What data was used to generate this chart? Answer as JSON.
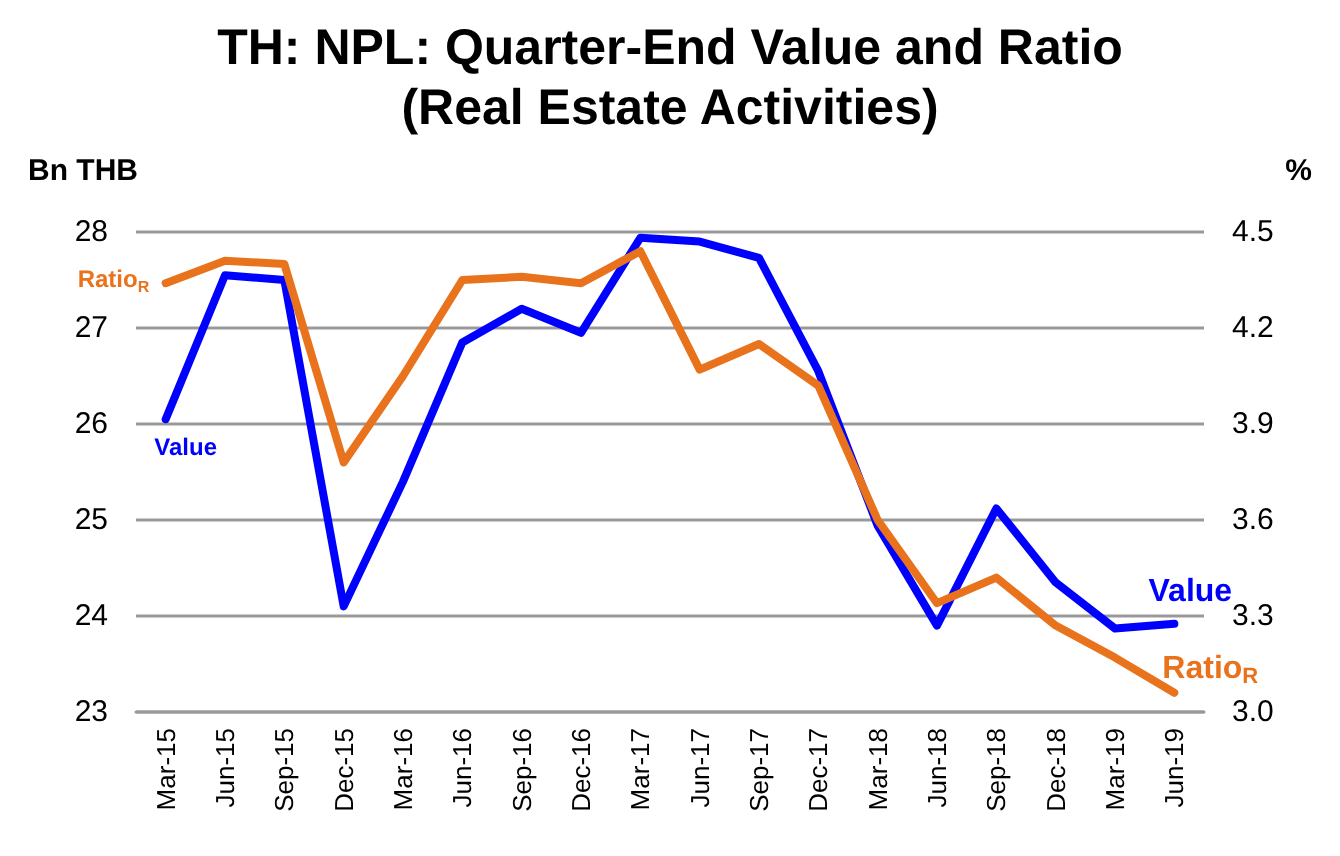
{
  "chart_data": {
    "type": "line",
    "title": "TH: NPL: Quarter-End Value and Ratio\n(Real Estate Activities)",
    "ylabel": "Bn THB",
    "y2label": "%",
    "categories": [
      "Mar-15",
      "Jun-15",
      "Sep-15",
      "Dec-15",
      "Mar-16",
      "Jun-16",
      "Sep-16",
      "Dec-16",
      "Mar-17",
      "Jun-17",
      "Sep-17",
      "Dec-17",
      "Mar-18",
      "Jun-18",
      "Sep-18",
      "Dec-18",
      "Mar-19",
      "Jun-19"
    ],
    "series": [
      {
        "name": "Value",
        "color": "#0000ff",
        "values": [
          26.05,
          27.55,
          27.5,
          24.1,
          25.4,
          26.85,
          27.2,
          26.95,
          27.94,
          27.9,
          27.73,
          26.55,
          24.94,
          23.9,
          25.12,
          24.35,
          23.87,
          23.92
        ]
      },
      {
        "name": "Ratio$_{R}$",
        "color": "#e8731c",
        "axis": "y2",
        "values": [
          4.34,
          4.41,
          4.4,
          3.78,
          4.05,
          4.35,
          4.36,
          4.34,
          4.44,
          4.07,
          4.15,
          4.02,
          3.6,
          3.34,
          3.42,
          3.27,
          3.17,
          3.06
        ]
      }
    ],
    "ylim": [
      23,
      28
    ],
    "yticks": [
      23,
      24,
      25,
      26,
      27,
      28
    ],
    "y2lim": [
      3,
      4.5
    ],
    "y2ticks": [
      {
        "value": 3,
        "label": "3.0"
      },
      3.3,
      3.6,
      3.9,
      4.2,
      4.5
    ],
    "annotations": [
      "Ratio$_{R}$"
    ],
    "grid": "y",
    "line_style": "solid",
    "marker": "none",
    "legend": false
  }
}
